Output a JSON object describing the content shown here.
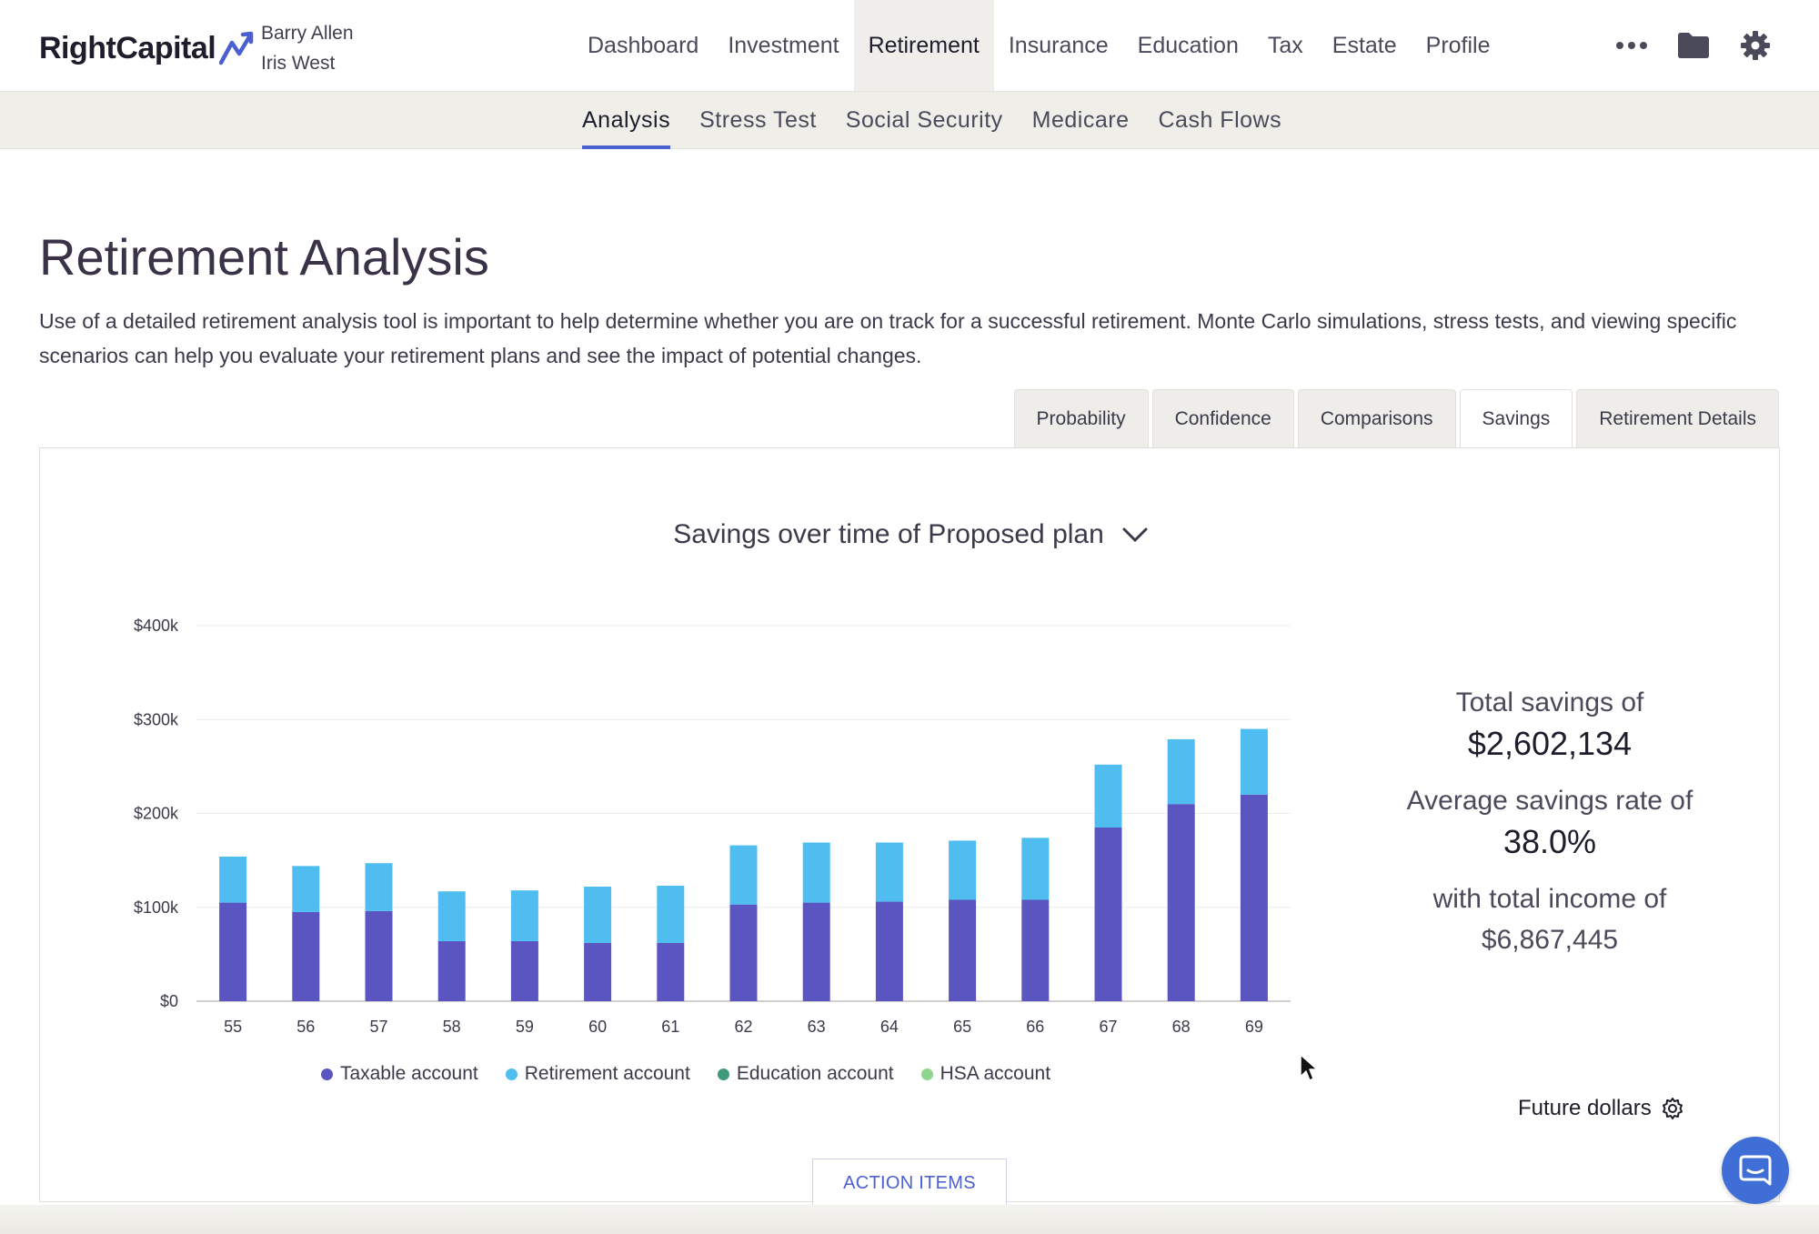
{
  "header": {
    "logo_text": "RightCapital",
    "clients": [
      "Barry Allen",
      "Iris West"
    ],
    "nav": [
      "Dashboard",
      "Investment",
      "Retirement",
      "Insurance",
      "Education",
      "Tax",
      "Estate",
      "Profile"
    ],
    "active_nav": "Retirement",
    "more_label": "•••"
  },
  "subnav": {
    "items": [
      "Analysis",
      "Stress Test",
      "Social Security",
      "Medicare",
      "Cash Flows"
    ],
    "active": "Analysis"
  },
  "page": {
    "title": "Retirement Analysis",
    "description": "Use of a detailed retirement analysis tool is important to help determine whether you are on track for a successful retirement. Monte Carlo simulations, stress tests, and viewing specific scenarios can help you evaluate your retirement plans and see the impact of potential changes."
  },
  "tabs": {
    "items": [
      "Probability",
      "Confidence",
      "Comparisons",
      "Savings",
      "Retirement Details"
    ],
    "active": "Savings"
  },
  "chart_title": "Savings over time of Proposed plan",
  "chart_data": {
    "type": "bar",
    "stacked": true,
    "categories": [
      "55",
      "56",
      "57",
      "58",
      "59",
      "60",
      "61",
      "62",
      "63",
      "64",
      "65",
      "66",
      "67",
      "68",
      "69"
    ],
    "series": [
      {
        "name": "Taxable account",
        "color": "#5a55c0",
        "values": [
          105,
          95,
          96,
          64,
          64,
          62,
          62,
          103,
          105,
          106,
          108,
          108,
          185,
          210,
          220
        ]
      },
      {
        "name": "Retirement account",
        "color": "#4fbdf0",
        "values": [
          49,
          49,
          51,
          53,
          54,
          60,
          61,
          63,
          64,
          63,
          63,
          66,
          67,
          69,
          70
        ]
      },
      {
        "name": "Education account",
        "color": "#3f9a7a",
        "values": [
          0,
          0,
          0,
          0,
          0,
          0,
          0,
          0,
          0,
          0,
          0,
          0,
          0,
          0,
          0
        ]
      },
      {
        "name": "HSA account",
        "color": "#8fd68c",
        "values": [
          0,
          0,
          0,
          0,
          0,
          0,
          0,
          0,
          0,
          0,
          0,
          0,
          0,
          0,
          0
        ]
      }
    ],
    "yticks": [
      "$0",
      "$100k",
      "$200k",
      "$300k",
      "$400k"
    ],
    "ylim": [
      0,
      400
    ],
    "grid": true,
    "legend": "bottom"
  },
  "summary": {
    "total_savings_label": "Total savings of",
    "total_savings_value": "$2,602,134",
    "avg_rate_label": "Average savings rate of",
    "avg_rate_value": "38.0%",
    "income_label": "with total income of",
    "income_value": "$6,867,445"
  },
  "future_dollars_label": "Future dollars",
  "action_items_label": "ACTION ITEMS",
  "colors": {
    "accent": "#4a5fd0",
    "taxable": "#5a55c0",
    "retirement": "#4fbdf0",
    "education": "#3f9a7a",
    "hsa": "#8fd68c"
  }
}
